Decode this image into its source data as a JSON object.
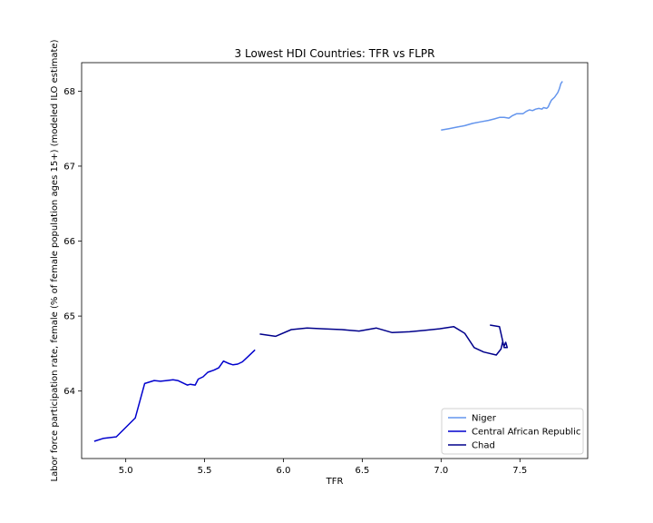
{
  "chart_data": {
    "type": "line",
    "title": "3 Lowest HDI Countries: TFR vs FLPR",
    "xlabel": "TFR",
    "ylabel": "Labor force participation rate, female (% of female population ages 15+) (modeled ILO estimate)",
    "xlim": [
      4.72,
      7.93
    ],
    "ylim": [
      63.1,
      68.38
    ],
    "xticks": [
      5.0,
      5.5,
      6.0,
      6.5,
      7.0,
      7.5
    ],
    "xtick_labels": [
      "5.0",
      "5.5",
      "6.0",
      "6.5",
      "7.0",
      "7.5"
    ],
    "yticks": [
      64,
      65,
      66,
      67,
      68
    ],
    "ytick_labels": [
      "64",
      "65",
      "66",
      "67",
      "68"
    ],
    "grid": false,
    "legend_position": "lower-right",
    "series": [
      {
        "name": "Niger",
        "color": "#6495ed",
        "x": [
          7.0,
          7.05,
          7.1,
          7.15,
          7.2,
          7.25,
          7.3,
          7.34,
          7.37,
          7.4,
          7.43,
          7.45,
          7.48,
          7.5,
          7.52,
          7.54,
          7.56,
          7.58,
          7.6,
          7.62,
          7.64,
          7.65,
          7.67,
          7.68,
          7.69,
          7.7,
          7.72,
          7.74,
          7.75,
          7.76,
          7.77
        ],
        "y": [
          67.48,
          67.5,
          67.52,
          67.54,
          67.57,
          67.59,
          67.61,
          67.63,
          67.65,
          67.65,
          67.64,
          67.67,
          67.7,
          67.7,
          67.7,
          67.73,
          67.75,
          67.74,
          67.76,
          67.77,
          67.76,
          67.78,
          67.77,
          67.79,
          67.84,
          67.88,
          67.92,
          67.98,
          68.03,
          68.1,
          68.13
        ]
      },
      {
        "name": "Central African Republic",
        "color": "#0000cd",
        "x": [
          4.8,
          4.86,
          4.94,
          5.06,
          5.12,
          5.18,
          5.22,
          5.26,
          5.3,
          5.33,
          5.36,
          5.39,
          5.41,
          5.44,
          5.46,
          5.49,
          5.52,
          5.56,
          5.59,
          5.62,
          5.65,
          5.68,
          5.71,
          5.74,
          5.78,
          5.82
        ],
        "y": [
          63.33,
          63.37,
          63.39,
          63.64,
          64.1,
          64.14,
          64.13,
          64.14,
          64.15,
          64.14,
          64.11,
          64.08,
          64.09,
          64.08,
          64.16,
          64.19,
          64.25,
          64.28,
          64.31,
          64.4,
          64.37,
          64.35,
          64.36,
          64.39,
          64.47,
          64.55
        ]
      },
      {
        "name": "Chad",
        "color": "#00008b",
        "x": [
          5.85,
          5.95,
          6.05,
          6.15,
          6.25,
          6.37,
          6.48,
          6.59,
          6.69,
          6.8,
          6.9,
          6.99,
          7.08,
          7.15,
          7.21,
          7.27,
          7.35,
          7.38,
          7.39,
          7.4,
          7.41,
          7.42,
          7.4,
          7.37,
          7.31
        ],
        "y": [
          64.76,
          64.73,
          64.82,
          64.84,
          64.83,
          64.82,
          64.8,
          64.84,
          64.78,
          64.79,
          64.81,
          64.83,
          64.86,
          64.77,
          64.58,
          64.52,
          64.48,
          64.56,
          64.65,
          64.6,
          64.65,
          64.58,
          64.58,
          64.86,
          64.88
        ]
      }
    ]
  }
}
